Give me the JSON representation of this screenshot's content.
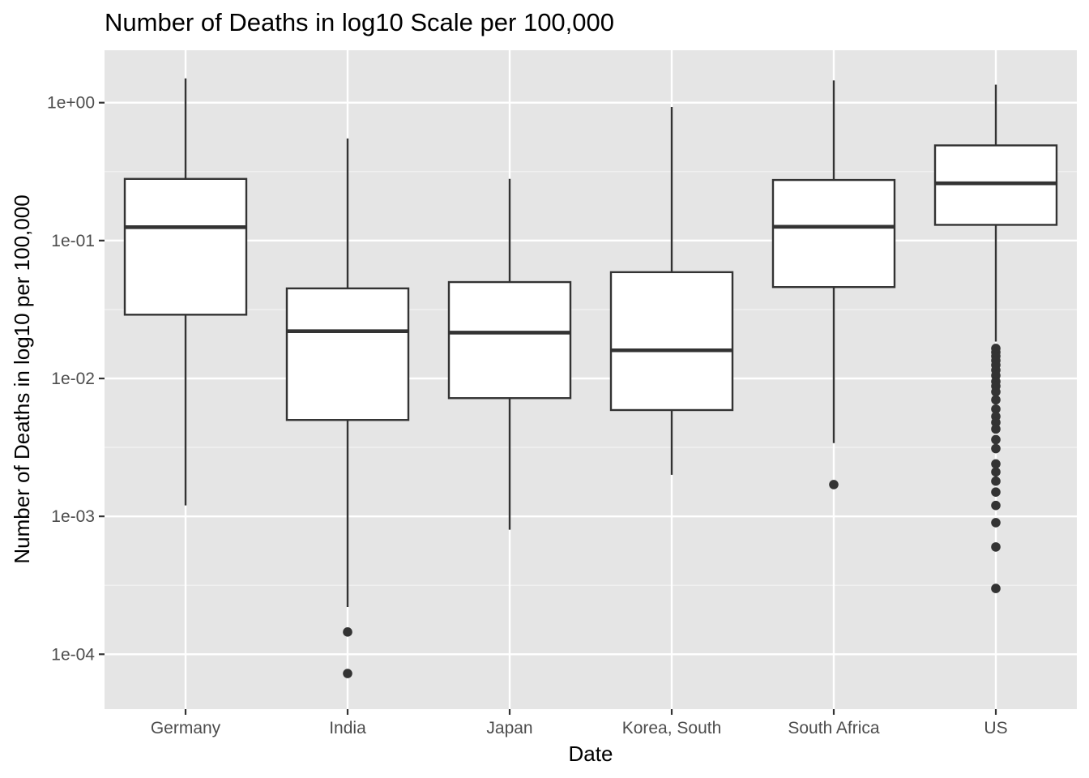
{
  "colors": {
    "panel_background": "#e5e5e5",
    "grid_major": "#ffffff",
    "grid_minor": "#f2f2f2",
    "box_fill": "#ffffff",
    "box_line": "#333333",
    "tick_text": "#4d4d4d",
    "text": "#000000"
  },
  "chart_data": {
    "type": "box",
    "title": "Number of Deaths in log10 Scale per 100,000",
    "xlabel": "Date",
    "ylabel": "Number of Deaths in log10 per 100,000",
    "y_scale": "log10",
    "ylim": [
      4e-05,
      2.4
    ],
    "y_ticks": [
      {
        "value": 1,
        "label": "1e+00"
      },
      {
        "value": 0.1,
        "label": "1e-01"
      },
      {
        "value": 0.01,
        "label": "1e-02"
      },
      {
        "value": 0.001,
        "label": "1e-03"
      },
      {
        "value": 0.0001,
        "label": "1e-04"
      }
    ],
    "grid": true,
    "legend": "none",
    "categories": [
      "Germany",
      "India",
      "Japan",
      "Korea, South",
      "South Africa",
      "US"
    ],
    "boxes": [
      {
        "category": "Germany",
        "whisker_low": 0.0012,
        "q1": 0.029,
        "median": 0.125,
        "q3": 0.28,
        "whisker_high": 1.5,
        "outliers": []
      },
      {
        "category": "India",
        "whisker_low": 0.00022,
        "q1": 0.005,
        "median": 0.022,
        "q3": 0.045,
        "whisker_high": 0.55,
        "outliers": [
          0.000145,
          7.25e-05
        ]
      },
      {
        "category": "Japan",
        "whisker_low": 0.0008,
        "q1": 0.0072,
        "median": 0.0215,
        "q3": 0.05,
        "whisker_high": 0.28,
        "outliers": []
      },
      {
        "category": "Korea, South",
        "whisker_low": 0.002,
        "q1": 0.0059,
        "median": 0.016,
        "q3": 0.059,
        "whisker_high": 0.93,
        "outliers": []
      },
      {
        "category": "South Africa",
        "whisker_low": 0.0034,
        "q1": 0.046,
        "median": 0.126,
        "q3": 0.275,
        "whisker_high": 1.45,
        "outliers": [
          0.0017
        ]
      },
      {
        "category": "US",
        "whisker_low": 0.0185,
        "q1": 0.13,
        "median": 0.26,
        "q3": 0.49,
        "whisker_high": 1.35,
        "outliers": [
          0.0165,
          0.0155,
          0.0145,
          0.0135,
          0.0125,
          0.0115,
          0.0105,
          0.0095,
          0.0088,
          0.008,
          0.007,
          0.006,
          0.0053,
          0.0048,
          0.0043,
          0.0036,
          0.0031,
          0.0024,
          0.0021,
          0.0018,
          0.0015,
          0.0012,
          0.0009,
          0.0006,
          0.0003
        ]
      }
    ]
  }
}
